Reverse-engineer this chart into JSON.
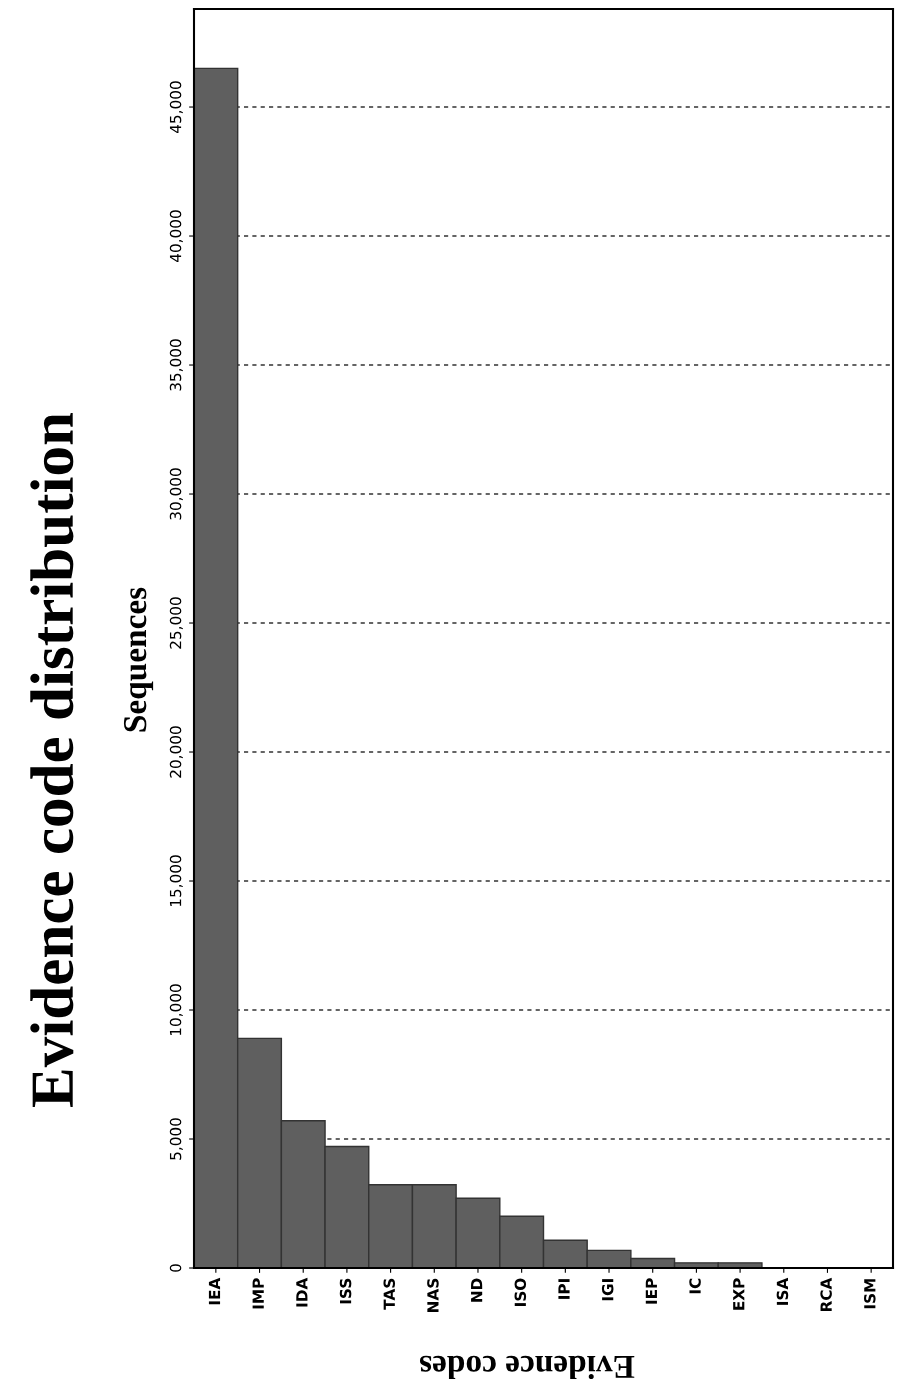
{
  "chart_data": {
    "type": "bar",
    "title": "Evidence code distribution",
    "ylabel": "Sequences",
    "xlabel": "Evidence codes",
    "categories": [
      "IEA",
      "IMP",
      "IDA",
      "ISS",
      "TAS",
      "NAS",
      "ND",
      "ISO",
      "IPI",
      "IGI",
      "IEP",
      "IC",
      "EXP",
      "ISA",
      "RCA",
      "ISM"
    ],
    "values": [
      46500,
      8900,
      5710,
      4710,
      3225,
      3225,
      2705,
      2005,
      1075,
      685,
      370,
      200,
      200,
      10,
      10,
      10
    ],
    "color": "#5f5f5f",
    "ylim": [
      0,
      48800
    ],
    "yticks": [
      {
        "value": 0,
        "label": "0"
      },
      {
        "value": 5000,
        "label": "5,000"
      },
      {
        "value": 10000,
        "label": "10,000"
      },
      {
        "value": 15000,
        "label": "15,000"
      },
      {
        "value": 20000,
        "label": "20,000"
      },
      {
        "value": 25000,
        "label": "25,000"
      },
      {
        "value": 30000,
        "label": "30,000"
      },
      {
        "value": 35000,
        "label": "35,000"
      },
      {
        "value": 40000,
        "label": "40,000"
      },
      {
        "value": 45000,
        "label": "45,000"
      }
    ],
    "grid": "y"
  }
}
